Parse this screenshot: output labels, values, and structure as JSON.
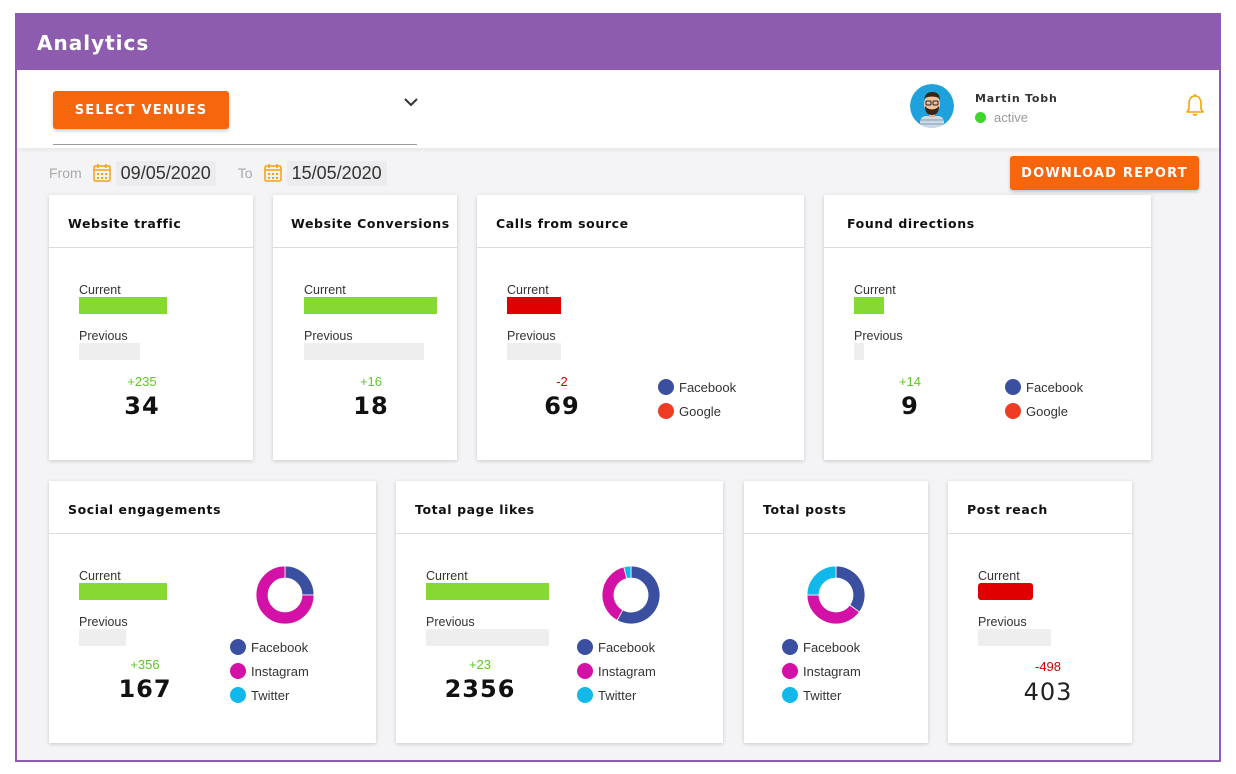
{
  "app": {
    "title": "Analytics"
  },
  "toolbar": {
    "venue_label": "SELECT VENUES",
    "download_label": "DOWNLOAD REPORT"
  },
  "user": {
    "name": "Martin Tobh",
    "status": "active"
  },
  "dates": {
    "from_label": "From",
    "from_value": "09/05/2020",
    "to_label": "To",
    "to_value": "15/05/2020"
  },
  "colors": {
    "accent": "#8e5cae",
    "button": "#f7650d",
    "positive": "#5cc825",
    "negative": "#d00000",
    "facebook": "#3b4fa0",
    "google": "#ec3d22",
    "instagram": "#d411a6",
    "twitter": "#11b8ea"
  },
  "labels": {
    "current": "Current",
    "previous": "Previous"
  },
  "legend": {
    "facebook": "Facebook",
    "google": "Google",
    "instagram": "Instagram",
    "twitter": "Twitter"
  },
  "cards": [
    {
      "title": "Website traffic",
      "delta": "+235",
      "value": "34",
      "current_level": 0.8,
      "previous_level": 0.55
    },
    {
      "title": "Website Conversions",
      "delta": "+16",
      "value": "18",
      "current_level": 1.0,
      "previous_level": 0.9
    },
    {
      "title": "Calls from source",
      "delta": "-2",
      "value": "69",
      "current_level": 0.6,
      "previous_level": 0.6
    },
    {
      "title": "Found directions",
      "delta": "+14",
      "value": "9",
      "current_level": 0.3,
      "previous_level": 0.1
    },
    {
      "title": "Social engagements",
      "delta": "+356",
      "value": "167",
      "current_level": 0.8,
      "previous_level": 0.43,
      "donut": {
        "facebook": 25,
        "instagram": 75,
        "twitter": 0
      }
    },
    {
      "title": "Total page likes",
      "delta": "+23",
      "value": "2356",
      "current_level": 1.0,
      "previous_level": 1.0,
      "donut": {
        "facebook": 58,
        "instagram": 38,
        "twitter": 4
      }
    },
    {
      "title": "Total posts",
      "donut": {
        "facebook": 35,
        "instagram": 40,
        "twitter": 25
      }
    },
    {
      "title": "Post reach",
      "delta": "-498",
      "value": "403",
      "current_level": 0.75,
      "previous_level": 1.0
    }
  ]
}
